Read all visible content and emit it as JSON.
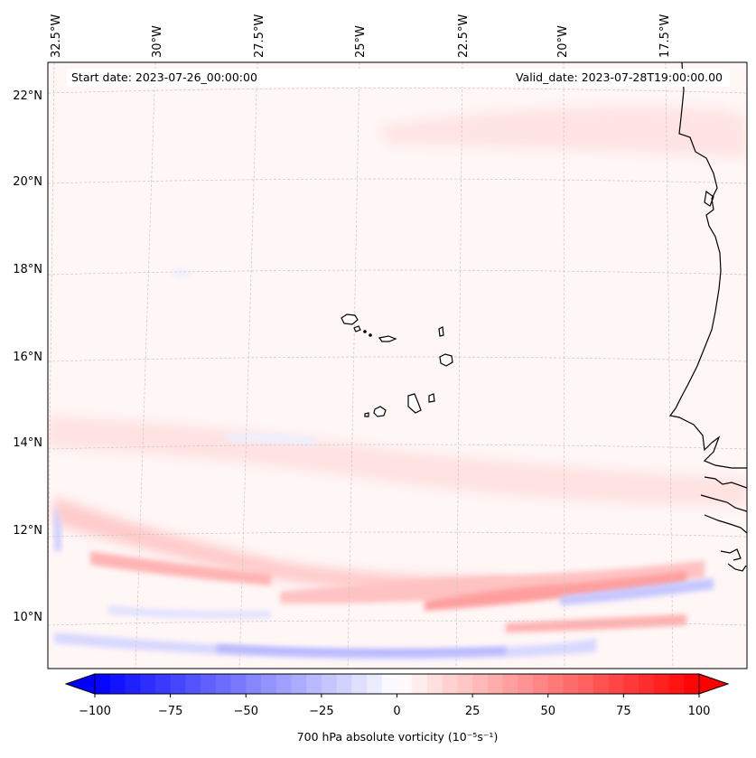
{
  "header": {
    "start_date": "Start date: 2023-07-26_00:00:00",
    "valid_date": "Valid_date: 2023-07-28T19:00:00.00"
  },
  "lon_labels": [
    "32.5°W",
    "30°W",
    "27.5°W",
    "25°W",
    "22.5°W",
    "20°W",
    "17.5°W"
  ],
  "lat_labels": [
    "22°N",
    "20°N",
    "18°N",
    "16°N",
    "14°N",
    "12°N",
    "10°N"
  ],
  "colorbar": {
    "min": -100,
    "max": 100,
    "ticks": [
      "−100",
      "−75",
      "−50",
      "−25",
      "0",
      "25",
      "50",
      "75",
      "100"
    ],
    "title": "700 hPa absolute vorticity (10⁻⁵s⁻¹)",
    "colormap": "bwr",
    "extend": "both",
    "low_color": "#0000ff",
    "mid_color": "#ffffff",
    "high_color": "#ff0000"
  },
  "colors": {
    "coastline": "#000000",
    "gridline": "#c8c8c8",
    "background_field": "#fff6f6"
  }
}
